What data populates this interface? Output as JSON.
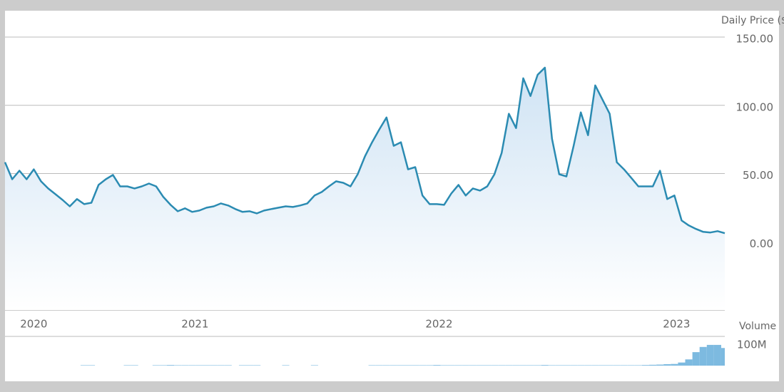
{
  "chart_data": [
    {
      "type": "area",
      "y_label": "Daily Price ($",
      "color": "#2b8bb2",
      "grid": true,
      "xlim": [
        0,
        100
      ],
      "xticks": [
        {
          "value": 4,
          "label": "2020"
        },
        {
          "value": 26.4,
          "label": "2021"
        },
        {
          "value": 60.3,
          "label": "2022"
        },
        {
          "value": 93.3,
          "label": "2023"
        }
      ],
      "ylim": [
        -50,
        150
      ],
      "yticks": [
        {
          "value": 150,
          "label": "150.00"
        },
        {
          "value": 100,
          "label": "100.00"
        },
        {
          "value": 50,
          "label": "50.00"
        },
        {
          "value": 0,
          "label": "0.00"
        }
      ],
      "values": [
        58.3,
        45.8,
        52.1,
        45.8,
        53.1,
        44.3,
        39.1,
        34.9,
        30.7,
        26.0,
        31.3,
        27.6,
        28.6,
        41.7,
        45.8,
        49.0,
        40.6,
        40.6,
        39.1,
        40.6,
        42.7,
        40.6,
        32.8,
        27.1,
        22.4,
        24.5,
        21.9,
        22.9,
        25.0,
        26.0,
        28.1,
        26.6,
        24.0,
        21.9,
        22.4,
        20.8,
        22.9,
        24.0,
        25.0,
        26.0,
        25.5,
        26.6,
        28.1,
        33.9,
        36.5,
        40.6,
        44.3,
        43.2,
        40.6,
        49.5,
        62.5,
        72.9,
        82.3,
        91.1,
        70.3,
        72.9,
        53.1,
        54.7,
        33.9,
        27.6,
        27.6,
        27.1,
        35.4,
        41.7,
        33.9,
        39.1,
        37.5,
        40.6,
        49.5,
        65.1,
        93.8,
        83.3,
        119.8,
        106.8,
        122.4,
        127.6,
        75.5,
        49.5,
        47.9,
        70.3,
        94.8,
        78.1,
        114.6,
        104.2,
        93.8,
        58.3,
        53.1,
        46.9,
        40.6,
        40.6,
        40.6,
        52.1,
        31.3,
        33.9,
        15.6,
        12.0,
        9.4,
        7.3,
        6.8,
        7.8,
        6.3
      ]
    },
    {
      "type": "bar",
      "y_label": "Volume",
      "color": "#7dbae0",
      "xlim": [
        0,
        100
      ],
      "ylim": [
        0,
        134000000
      ],
      "yticks": [
        {
          "value": 100000000,
          "label": "100M"
        }
      ],
      "values": [
        0,
        0,
        0,
        0,
        0,
        0,
        0,
        0,
        0,
        0,
        0,
        2000000,
        2000000,
        0,
        0,
        0,
        0,
        2000000,
        2000000,
        0,
        0,
        2000000,
        2000000,
        3000000,
        2000000,
        2000000,
        2000000,
        2000000,
        2000000,
        2000000,
        2000000,
        2000000,
        0,
        2000000,
        2000000,
        2000000,
        0,
        0,
        0,
        2000000,
        0,
        0,
        0,
        2000000,
        0,
        0,
        0,
        0,
        0,
        0,
        0,
        2000000,
        2000000,
        2000000,
        2000000,
        2000000,
        2000000,
        2000000,
        2000000,
        2000000,
        3000000,
        2000000,
        2000000,
        2000000,
        2000000,
        2000000,
        2000000,
        2000000,
        2000000,
        2000000,
        2000000,
        2000000,
        2000000,
        2000000,
        2000000,
        3000000,
        2000000,
        2000000,
        2000000,
        2000000,
        2000000,
        2000000,
        2000000,
        2000000,
        2000000,
        2000000,
        2000000,
        2000000,
        2000000,
        3000000,
        4000000,
        5000000,
        7000000,
        8000000,
        15000000,
        30000000,
        65000000,
        90000000,
        100000000,
        100000000,
        85000000
      ]
    }
  ]
}
